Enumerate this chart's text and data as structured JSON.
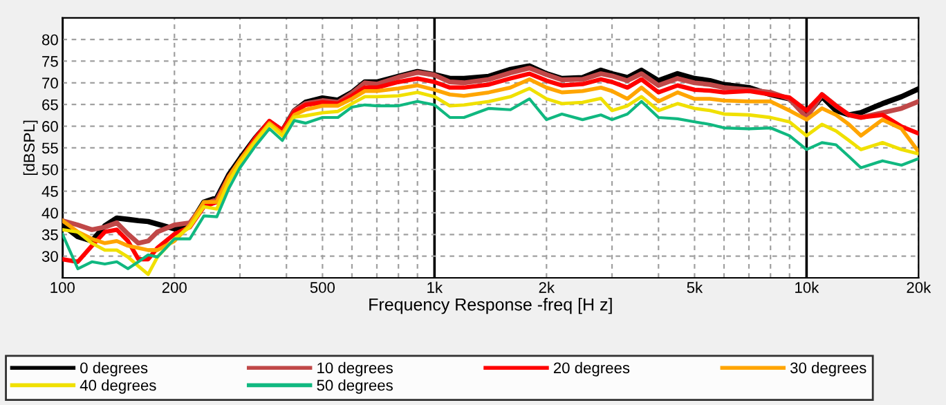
{
  "chart_data": {
    "type": "line",
    "xlabel": "Frequency Response -freq [H z]",
    "ylabel": "[dBSPL]",
    "log": "x",
    "grid": true,
    "legend": "bottom",
    "line_style": "solid",
    "marker": "none",
    "x": [
      100,
      110,
      120,
      130,
      140,
      150,
      160,
      170,
      180,
      200,
      220,
      240,
      260,
      280,
      300,
      330,
      360,
      390,
      420,
      450,
      500,
      550,
      600,
      650,
      700,
      800,
      900,
      1000,
      1100,
      1200,
      1400,
      1600,
      1800,
      2000,
      2200,
      2500,
      2800,
      3000,
      3300,
      3600,
      4000,
      4500,
      5000,
      5500,
      6000,
      7000,
      8000,
      9000,
      10000,
      11000,
      12000,
      13000,
      14000,
      16000,
      18000,
      20000
    ],
    "xlim": [
      100,
      20000
    ],
    "xticks": [
      100,
      200,
      {
        "value": 300,
        "label": null
      },
      {
        "value": 400,
        "label": null
      },
      500,
      {
        "value": 600,
        "label": null
      },
      {
        "value": 700,
        "label": null
      },
      {
        "value": 800,
        "label": null
      },
      {
        "value": 900,
        "label": null
      },
      {
        "value": 1000,
        "label": "1k"
      },
      {
        "value": 2000,
        "label": "2k"
      },
      {
        "value": 3000,
        "label": null
      },
      {
        "value": 4000,
        "label": null
      },
      {
        "value": 5000,
        "label": "5k"
      },
      {
        "value": 6000,
        "label": null
      },
      {
        "value": 7000,
        "label": null
      },
      {
        "value": 8000,
        "label": null
      },
      {
        "value": 9000,
        "label": null
      },
      {
        "value": 10000,
        "label": "10k"
      },
      {
        "value": 20000,
        "label": "20k"
      }
    ],
    "ylim": [
      25,
      85
    ],
    "yticks": [
      30,
      35,
      40,
      45,
      50,
      55,
      60,
      65,
      70,
      75,
      80
    ],
    "series": [
      {
        "name": "0 degrees",
        "color": "#000000",
        "values": [
          37.2,
          34.5,
          33.5,
          37,
          38.8,
          38.5,
          38.2,
          38,
          37.4,
          36.3,
          37.2,
          42.5,
          43.5,
          48.8,
          52.5,
          57.3,
          61,
          58.9,
          63.6,
          65.5,
          66.5,
          66,
          67.8,
          70.2,
          70.2,
          71.5,
          72.6,
          71.9,
          71,
          71,
          71.5,
          73.1,
          73.9,
          72.1,
          71,
          71.2,
          72.9,
          72.1,
          71.2,
          72.9,
          70.5,
          72.1,
          71,
          70.5,
          69.6,
          68.9,
          67.3,
          66.3,
          62.5,
          66.8,
          63.6,
          62.6,
          63.1,
          65.2,
          66.8,
          68.6
        ]
      },
      {
        "name": "10 degrees",
        "color": "#c04848",
        "values": [
          38.2,
          37.2,
          36.1,
          36.7,
          37.7,
          35.1,
          33,
          33.5,
          35.6,
          37.2,
          37.7,
          42,
          43,
          48.3,
          52,
          57,
          61,
          58.9,
          63.6,
          65.2,
          65.9,
          65.5,
          67.6,
          70,
          69.7,
          71.3,
          72.4,
          71.8,
          70.2,
          70,
          70.8,
          72.3,
          73.4,
          71.9,
          70.7,
          70.8,
          72.1,
          71.6,
          70.5,
          72.1,
          69.4,
          71,
          70,
          69.6,
          68.9,
          68.4,
          67.8,
          66.3,
          62,
          67.3,
          64.7,
          62.6,
          62,
          63.1,
          64.1,
          65.7
        ]
      },
      {
        "name": "20 degrees",
        "color": "#ff0000",
        "values": [
          29.3,
          28.7,
          32.4,
          35.6,
          36.1,
          33.5,
          29.3,
          29.3,
          31.9,
          35.1,
          36.7,
          41.4,
          42.5,
          48.3,
          52,
          57.3,
          61.2,
          59.1,
          63.3,
          64.9,
          65.5,
          65.2,
          67,
          68.9,
          68.9,
          70.2,
          71,
          70.2,
          68.9,
          68.9,
          69.6,
          71,
          72.1,
          70.5,
          69.4,
          69.7,
          70.8,
          70.2,
          68.9,
          70.8,
          67.8,
          69.4,
          68.4,
          68.2,
          67.8,
          68.1,
          67.3,
          66.6,
          63.6,
          67.3,
          64.7,
          62.6,
          62,
          62.6,
          59.9,
          58.3
        ]
      },
      {
        "name": "30 degrees",
        "color": "#ffa500",
        "values": [
          38.2,
          35.6,
          34,
          33,
          33.5,
          32.4,
          31.9,
          31.4,
          31.4,
          33.5,
          37.2,
          42.5,
          42.5,
          48.3,
          52.2,
          56.7,
          60.7,
          58.3,
          62.6,
          63.8,
          64.7,
          64.7,
          66.3,
          68.1,
          68.1,
          68.7,
          69.4,
          68.4,
          67.3,
          67,
          67.8,
          68.9,
          70.8,
          68.9,
          67.8,
          68.1,
          68.9,
          68.1,
          66.3,
          68.9,
          65.7,
          67.8,
          66.3,
          66.3,
          65.9,
          65.7,
          65.7,
          63.6,
          61.5,
          64.1,
          62.6,
          60.4,
          57.8,
          61.5,
          59.4,
          54.1
        ]
      },
      {
        "name": "40 degrees",
        "color": "#f0e000",
        "values": [
          36.1,
          35.6,
          33,
          31.4,
          31.4,
          29.8,
          27.7,
          25.8,
          29.8,
          34,
          36.7,
          41.4,
          40.9,
          47.2,
          51.5,
          56.4,
          60.4,
          57.8,
          62.1,
          62.4,
          63.1,
          63.4,
          65.2,
          66.8,
          66.8,
          67,
          67.8,
          66.8,
          64.7,
          64.9,
          65.7,
          66.8,
          68.7,
          66.3,
          65.2,
          65.5,
          66.4,
          63.6,
          64.7,
          66.8,
          63.6,
          65.2,
          64.1,
          63.6,
          62.8,
          62.6,
          62,
          61,
          57.8,
          60.4,
          58.9,
          56.7,
          54.6,
          56.2,
          54.6,
          53.6
        ]
      },
      {
        "name": "50 degrees",
        "color": "#10b880",
        "values": [
          35.1,
          27.1,
          28.7,
          28.2,
          28.7,
          27.1,
          28.7,
          30.3,
          29.8,
          34,
          34,
          39.3,
          39.1,
          45.6,
          50.4,
          55.4,
          59.4,
          56.7,
          61.3,
          60.7,
          62,
          62,
          64.4,
          64.9,
          64.7,
          64.7,
          65.7,
          64.9,
          62,
          62,
          64.1,
          63.8,
          66.3,
          61.5,
          62.8,
          61.5,
          62.6,
          61.5,
          62.8,
          65.7,
          62,
          61.7,
          61,
          60.4,
          59.6,
          59.4,
          59.6,
          57.8,
          54.6,
          56.2,
          55.7,
          53,
          50.4,
          52,
          51,
          52.5
        ]
      }
    ]
  }
}
